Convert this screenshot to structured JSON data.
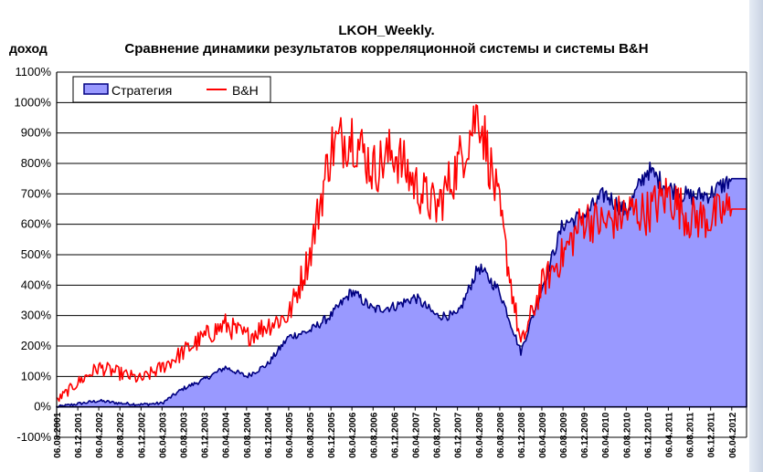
{
  "chart_data": {
    "type": "area",
    "title_line1": "LKOH_Weekly.",
    "title_line2": "Сравнение динамики результатов корреляционной системы и системы B&H",
    "ylabel": "доход",
    "ylim": [
      -100,
      1100
    ],
    "yticks": [
      -100,
      0,
      100,
      200,
      300,
      400,
      500,
      600,
      700,
      800,
      900,
      1000,
      1100
    ],
    "ytick_labels": [
      "-100%",
      "0%",
      "100%",
      "200%",
      "300%",
      "400%",
      "500%",
      "600%",
      "700%",
      "800%",
      "900%",
      "1000%",
      "1100%"
    ],
    "grid": "horizontal",
    "legend_position": "top-left",
    "x_tick_labels": [
      "06.08.2001",
      "06.12.2001",
      "06.04.2002",
      "06.08.2002",
      "06.12.2002",
      "06.04.2003",
      "06.08.2003",
      "06.12.2003",
      "06.04.2004",
      "06.08.2004",
      "06.12.2004",
      "06.04.2005",
      "06.08.2005",
      "06.12.2005",
      "06.04.2006",
      "06.08.2006",
      "06.12.2006",
      "06.04.2007",
      "06.08.2007",
      "06.12.2007",
      "06.04.2008",
      "06.08.2008",
      "06.12.2008",
      "06.04.2009",
      "06.08.2009",
      "06.12.2009",
      "06.04.2010",
      "06.08.2010",
      "06.12.2010",
      "06.04.2011",
      "06.08.2011",
      "06.12.2011",
      "06.04.2012"
    ],
    "x_dates": [
      "2001-08-06",
      "2001-12-06",
      "2002-04-06",
      "2002-08-06",
      "2002-12-06",
      "2003-04-06",
      "2003-08-06",
      "2003-12-06",
      "2004-04-06",
      "2004-08-06",
      "2004-12-06",
      "2005-04-06",
      "2005-08-06",
      "2005-12-06",
      "2006-04-06",
      "2006-08-06",
      "2006-12-06",
      "2007-04-06",
      "2007-08-06",
      "2007-12-06",
      "2008-04-06",
      "2008-08-06",
      "2008-12-06",
      "2009-04-06",
      "2009-08-06",
      "2009-12-06",
      "2010-04-06",
      "2010-08-06",
      "2010-12-06",
      "2011-04-06",
      "2011-08-06",
      "2011-12-06",
      "2012-04-06"
    ],
    "series": [
      {
        "name": "Стратегия",
        "type": "area",
        "fill": "#9999ff",
        "stroke": "#000080",
        "values": [
          0,
          10,
          20,
          12,
          8,
          12,
          60,
          90,
          130,
          100,
          140,
          230,
          250,
          300,
          380,
          320,
          330,
          360,
          300,
          300,
          460,
          380,
          180,
          390,
          600,
          630,
          700,
          640,
          780,
          720,
          690,
          700,
          750
        ]
      },
      {
        "name": "B&H",
        "type": "line",
        "stroke": "#ff0000",
        "values": [
          20,
          80,
          130,
          110,
          90,
          130,
          180,
          230,
          270,
          230,
          270,
          300,
          500,
          850,
          900,
          780,
          840,
          730,
          650,
          790,
          980,
          640,
          200,
          400,
          500,
          620,
          600,
          640,
          640,
          700,
          620,
          620,
          650
        ]
      }
    ]
  }
}
